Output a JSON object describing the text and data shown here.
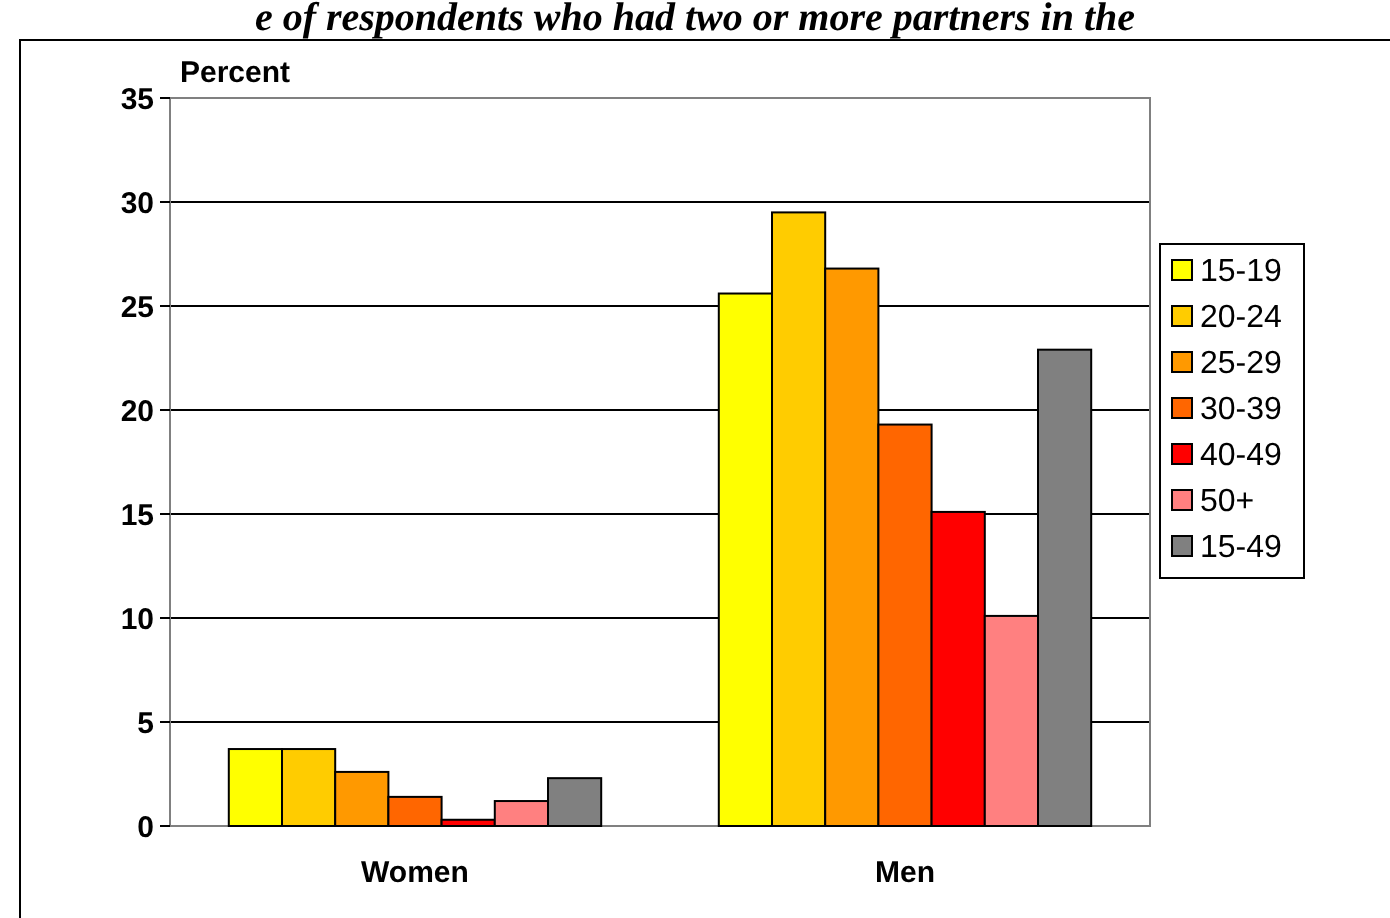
{
  "chart_data": {
    "type": "bar",
    "title": "e of respondents who had two or more partners in the",
    "ylabel": "Percent",
    "categories": [
      "Women",
      "Men"
    ],
    "series": [
      {
        "name": "15-19",
        "color": "#ffff00",
        "values": [
          3.7,
          25.6
        ]
      },
      {
        "name": "20-24",
        "color": "#ffcc00",
        "values": [
          3.7,
          29.5
        ]
      },
      {
        "name": "25-29",
        "color": "#ff9900",
        "values": [
          2.6,
          26.8
        ]
      },
      {
        "name": "30-39",
        "color": "#ff6600",
        "values": [
          1.4,
          19.3
        ]
      },
      {
        "name": "40-49",
        "color": "#ff0000",
        "values": [
          0.3,
          15.1
        ]
      },
      {
        "name": "50+",
        "color": "#ff8080",
        "values": [
          1.2,
          10.1
        ]
      },
      {
        "name": "15-49",
        "color": "#808080",
        "values": [
          2.3,
          22.9
        ]
      }
    ],
    "ylim": [
      0,
      35
    ],
    "yticks": [
      0,
      5,
      10,
      15,
      20,
      25,
      30,
      35
    ],
    "grid": "y",
    "legend": "right"
  }
}
